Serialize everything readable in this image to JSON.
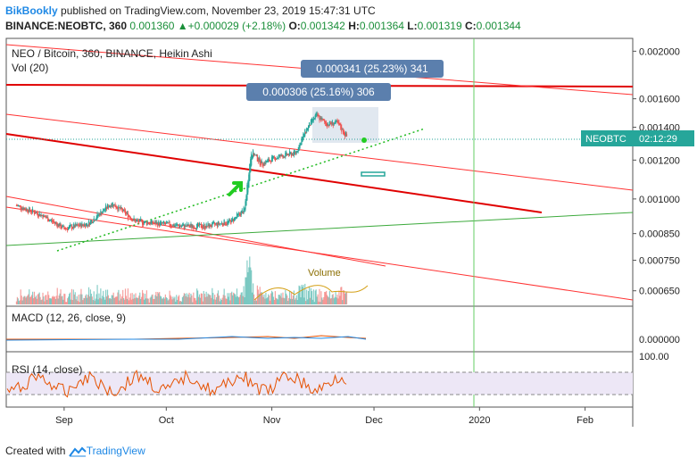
{
  "header": {
    "author": "BikBookly",
    "published": "published on TradingView.com, November 23, 2019 15:47:31 UTC",
    "symbol": "BINANCE:NEOBTC, 360",
    "last": "0.001360",
    "change": "+0.000029 (+2.18%)",
    "open_label": "O:",
    "open": "0.001342",
    "high_label": "H:",
    "high": "0.001364",
    "low_label": "L:",
    "low": "0.001319",
    "close_label": "C:",
    "close": "0.001344"
  },
  "legend": {
    "main": "NEO / Bitcoin, 360, BINANCE, Heikin Ashi",
    "vol": "Vol (20)",
    "volume_label": "Volume",
    "macd": "MACD (12, 26, close, 9)",
    "rsi": "RSI (14, close)"
  },
  "price_axis": [
    "0.002000",
    "0.001600",
    "0.001400",
    "0.001200",
    "0.001000",
    "0.000850",
    "0.000750",
    "0.000650"
  ],
  "price_tag": {
    "symbol": "NEOBTC",
    "countdown": "02:12:29"
  },
  "macd_axis": "0.000000",
  "rsi_axis": "100.00",
  "x_axis": [
    "Sep",
    "Oct",
    "Nov",
    "Dec",
    "2020",
    "Feb"
  ],
  "measure_labels": [
    "0.000341 (25.23%) 341",
    "0.000306 (25.16%) 306"
  ],
  "colors": {
    "candle_up": "#26a69a",
    "candle_down": "#ef5350",
    "trend_red": "#ff0000",
    "trend_green": "#4caf50",
    "vertical_green": "#66cc66",
    "arrow": "#22cc22",
    "label_bg": "#5b7fad",
    "tag_bg": "#26a69a",
    "rsi_line": "#e65100",
    "rsi_band": "#ede7f6"
  },
  "footer": {
    "created_with": "Created with",
    "brand": "TradingView"
  },
  "chart_data": {
    "type": "line",
    "title": "NEO / Bitcoin, 360, BINANCE, Heikin Ashi",
    "x": [
      "Sep",
      "Oct",
      "Nov",
      "Dec"
    ],
    "series": [
      {
        "name": "NEO / Bitcoin",
        "points": [
          [
            "2019-08-18",
            0.00097
          ],
          [
            "2019-08-25",
            0.00093
          ],
          [
            "2019-09-01",
            0.00087
          ],
          [
            "2019-09-08",
            0.00089
          ],
          [
            "2019-09-15",
            0.00098
          ],
          [
            "2019-09-22",
            0.0009
          ],
          [
            "2019-09-29",
            0.00089
          ],
          [
            "2019-10-06",
            0.00088
          ],
          [
            "2019-10-13",
            0.00088
          ],
          [
            "2019-10-20",
            0.0009
          ],
          [
            "2019-10-24",
            0.00095
          ],
          [
            "2019-10-26",
            0.00125
          ],
          [
            "2019-10-29",
            0.00118
          ],
          [
            "2019-11-03",
            0.00122
          ],
          [
            "2019-11-08",
            0.00124
          ],
          [
            "2019-11-11",
            0.00138
          ],
          [
            "2019-11-14",
            0.00148
          ],
          [
            "2019-11-17",
            0.00142
          ],
          [
            "2019-11-20",
            0.00143
          ],
          [
            "2019-11-23",
            0.00134
          ]
        ]
      }
    ],
    "ylim": [
      0.00062,
      0.00208
    ],
    "log_scale": true,
    "grid": false
  }
}
